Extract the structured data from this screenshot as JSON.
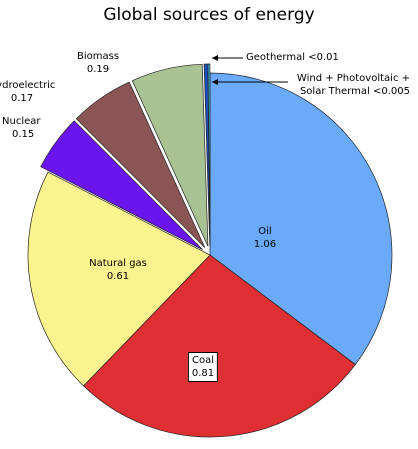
{
  "chart_data": {
    "type": "pie",
    "title": "Global sources of energy",
    "categories": [
      "Oil",
      "Coal",
      "Natural gas",
      "Nuclear",
      "Hydroelectric",
      "Biomass",
      "Geothermal",
      "Wind + Photovoltaic + Solar Thermal"
    ],
    "values": [
      1.06,
      0.81,
      0.61,
      0.15,
      0.17,
      0.19,
      0.01,
      0.005
    ],
    "value_labels": [
      "1.06",
      "0.81",
      "0.61",
      "0.15",
      "0.17",
      "0.19",
      "<0.01",
      "<0.005"
    ],
    "colors": [
      "#6aaaf8",
      "#e02f33",
      "#fcf28e",
      "#6a14ee",
      "#8c5555",
      "#a8c293",
      "#1d4fb8",
      "#3cc6e6"
    ],
    "exploded": [
      false,
      false,
      false,
      true,
      true,
      true,
      true,
      true
    ]
  }
}
